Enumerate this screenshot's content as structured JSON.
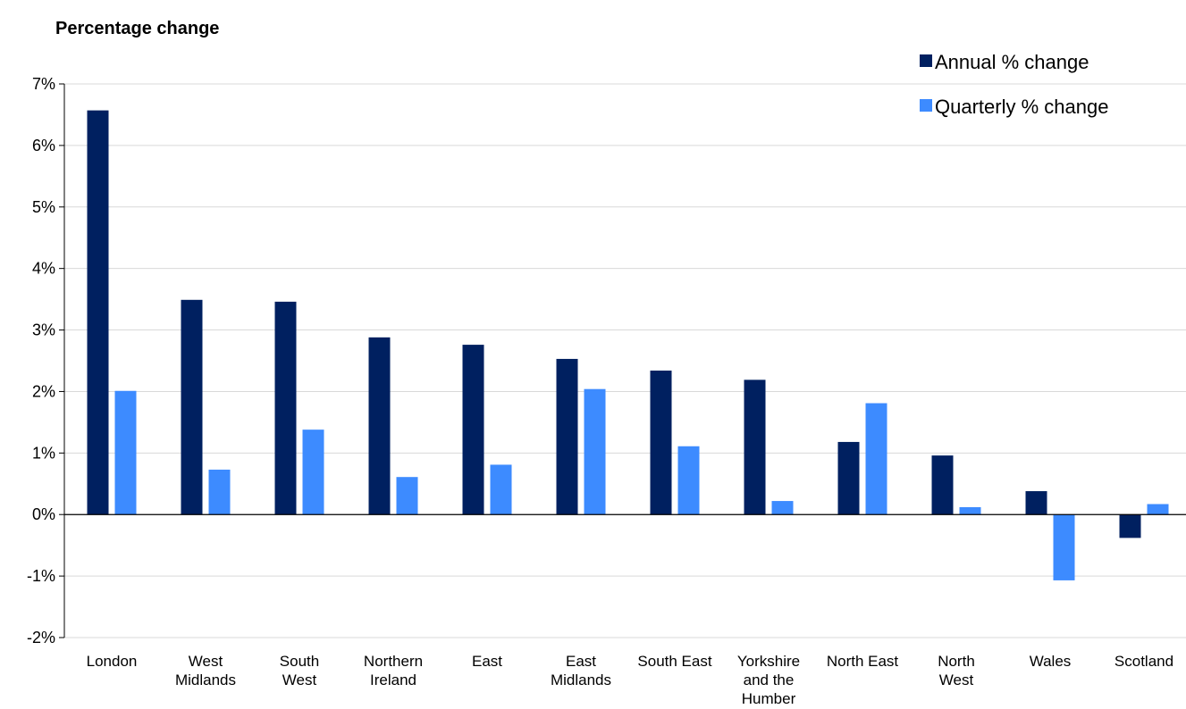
{
  "chart_data": {
    "type": "bar",
    "title": "Percentage change",
    "xlabel": "",
    "ylabel": "",
    "ylim": [
      -2,
      7
    ],
    "yticks": [
      7,
      6,
      5,
      4,
      3,
      2,
      1,
      0,
      -1,
      -2
    ],
    "ytick_labels": [
      "7%",
      "6%",
      "5%",
      "4%",
      "3%",
      "2%",
      "1%",
      "0%",
      "-1%",
      "-2%"
    ],
    "grid": true,
    "legend_position": "top-right",
    "categories": [
      [
        "London"
      ],
      [
        "West",
        "Midlands"
      ],
      [
        "South",
        "West"
      ],
      [
        "Northern",
        "Ireland"
      ],
      [
        "East"
      ],
      [
        "East",
        "Midlands"
      ],
      [
        "South East"
      ],
      [
        "Yorkshire",
        "and the",
        "Humber"
      ],
      [
        "North East"
      ],
      [
        "North",
        "West"
      ],
      [
        "Wales"
      ],
      [
        "Scotland"
      ]
    ],
    "series": [
      {
        "name": "Annual % change",
        "color": "#002060",
        "values": [
          6.57,
          3.49,
          3.46,
          2.88,
          2.76,
          2.53,
          2.34,
          2.19,
          1.18,
          0.96,
          0.38,
          -0.38
        ]
      },
      {
        "name": "Quarterly % change",
        "color": "#3D8BFF",
        "values": [
          2.01,
          0.73,
          1.38,
          0.61,
          0.81,
          2.04,
          1.11,
          0.22,
          1.81,
          0.12,
          -1.07,
          0.17
        ]
      }
    ]
  }
}
